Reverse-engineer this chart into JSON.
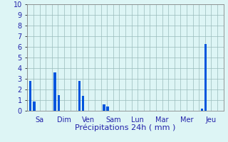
{
  "bars": [
    {
      "day_label": "Sa",
      "values": [
        2.8,
        0.9
      ]
    },
    {
      "day_label": "Dim",
      "values": [
        3.6,
        1.5
      ]
    },
    {
      "day_label": "Ven",
      "values": [
        2.8,
        1.4
      ]
    },
    {
      "day_label": "Sam",
      "values": [
        0.6,
        0.4
      ]
    },
    {
      "day_label": "Lun",
      "values": []
    },
    {
      "day_label": "Mar",
      "values": []
    },
    {
      "day_label": "Mer",
      "values": []
    },
    {
      "day_label": "Jeu",
      "values": [
        0.2,
        6.3
      ]
    }
  ],
  "bar_color": "#0055dd",
  "background_color": "#ddf5f5",
  "grid_color": "#99bbbb",
  "xlabel": "Précipitations 24h ( mm )",
  "ylim": [
    0,
    10
  ],
  "yticks": [
    0,
    1,
    2,
    3,
    4,
    5,
    6,
    7,
    8,
    9,
    10
  ],
  "xlabel_fontsize": 8,
  "tick_fontsize": 7,
  "tick_color": "#2222aa",
  "bar_width": 0.4,
  "n_slots_per_group": 4
}
